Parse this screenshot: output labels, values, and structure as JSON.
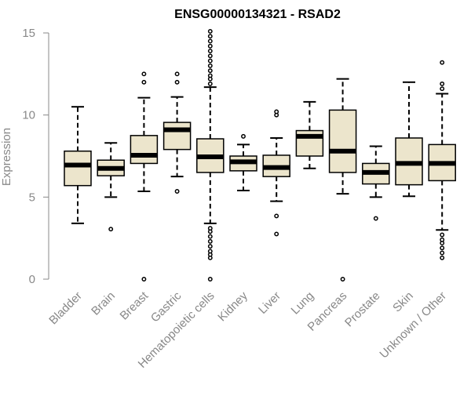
{
  "chart_data": {
    "type": "box",
    "title": "ENSG00000134321 - RSAD2",
    "ylabel": "Expression",
    "xlabel": "",
    "ylim": [
      0,
      15
    ],
    "yticks": [
      0,
      5,
      10,
      15
    ],
    "ytick_labels": [
      "0",
      "5",
      "10",
      "15"
    ],
    "grid": false,
    "legend": "none",
    "colors": {
      "box_fill": "#ece5cc",
      "outline": "#000000",
      "median": "#000000",
      "axis_text": "#888888"
    },
    "categories": [
      "Bladder",
      "Brain",
      "Breast",
      "Gastric",
      "Hematopoietic cells",
      "Kidney",
      "Liver",
      "Lung",
      "Pancreas",
      "Prostate",
      "Skin",
      "Unknown / Other"
    ],
    "boxes": [
      {
        "min": 3.4,
        "q1": 5.7,
        "median": 6.95,
        "q3": 7.8,
        "max": 10.5,
        "outliers": []
      },
      {
        "min": 5.0,
        "q1": 6.3,
        "median": 6.75,
        "q3": 7.25,
        "max": 8.3,
        "outliers": [
          3.05
        ]
      },
      {
        "min": 5.35,
        "q1": 7.05,
        "median": 7.55,
        "q3": 8.75,
        "max": 11.05,
        "outliers": [
          0.0,
          12.0,
          12.5
        ]
      },
      {
        "min": 6.25,
        "q1": 7.9,
        "median": 9.1,
        "q3": 9.55,
        "max": 11.1,
        "outliers": [
          5.35,
          12.0,
          12.5
        ]
      },
      {
        "min": 3.4,
        "q1": 6.5,
        "median": 7.45,
        "q3": 8.55,
        "max": 11.7,
        "outliers": [
          0.0,
          1.3,
          1.5,
          1.7,
          2.0,
          2.3,
          2.6,
          2.9,
          3.1,
          11.9,
          12.2,
          12.4,
          12.7,
          13.0,
          13.3,
          13.6,
          13.9,
          14.2,
          14.5,
          14.8,
          15.1
        ]
      },
      {
        "min": 5.4,
        "q1": 6.6,
        "median": 7.15,
        "q3": 7.5,
        "max": 8.2,
        "outliers": [
          8.7
        ]
      },
      {
        "min": 4.75,
        "q1": 6.25,
        "median": 6.8,
        "q3": 7.55,
        "max": 8.6,
        "outliers": [
          2.75,
          3.85,
          10.0,
          10.2
        ]
      },
      {
        "min": 6.75,
        "q1": 7.5,
        "median": 8.7,
        "q3": 9.05,
        "max": 10.8,
        "outliers": []
      },
      {
        "min": 5.2,
        "q1": 6.5,
        "median": 7.8,
        "q3": 10.3,
        "max": 12.2,
        "outliers": [
          0.0
        ]
      },
      {
        "min": 5.0,
        "q1": 5.8,
        "median": 6.5,
        "q3": 7.05,
        "max": 8.1,
        "outliers": [
          3.7
        ]
      },
      {
        "min": 5.05,
        "q1": 5.75,
        "median": 7.05,
        "q3": 8.6,
        "max": 12.0,
        "outliers": []
      },
      {
        "min": 3.0,
        "q1": 6.0,
        "median": 7.05,
        "q3": 8.2,
        "max": 11.3,
        "outliers": [
          1.3,
          1.6,
          1.9,
          2.2,
          2.4,
          2.7,
          11.6,
          11.9,
          13.2
        ]
      }
    ]
  }
}
